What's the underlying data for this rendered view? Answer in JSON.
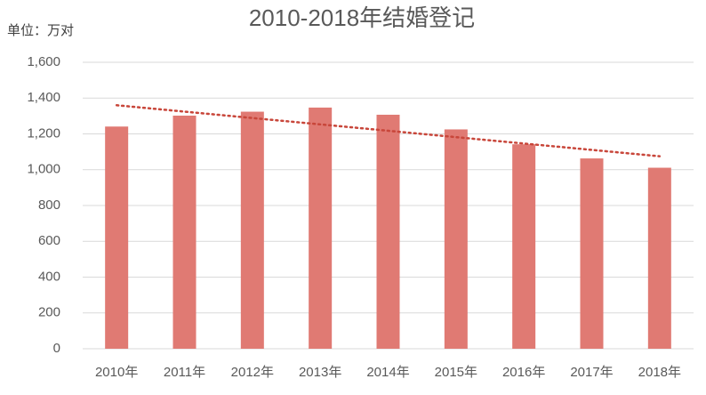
{
  "chart_data": {
    "type": "bar",
    "title": "2010-2018年结婚登记",
    "y_axis_label": "单位：万对",
    "categories": [
      "2010年",
      "2011年",
      "2012年",
      "2013年",
      "2014年",
      "2015年",
      "2016年",
      "2017年",
      "2018年"
    ],
    "values": [
      1241,
      1302,
      1324,
      1347,
      1307,
      1225,
      1142,
      1063,
      1011
    ],
    "color": "#e07a73",
    "trendline": {
      "color": "#c8463a",
      "values": [
        1360,
        1075
      ]
    },
    "ylim": [
      0,
      1600
    ],
    "yticks": [
      0,
      200,
      400,
      600,
      800,
      {
        "value": 1000,
        "label": "1,000"
      },
      {
        "value": 1200,
        "label": "1,200"
      },
      {
        "value": 1400,
        "label": "1,400"
      },
      {
        "value": 1600,
        "label": "1,600"
      }
    ],
    "grid": true
  }
}
